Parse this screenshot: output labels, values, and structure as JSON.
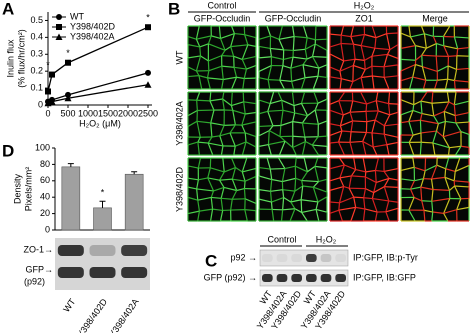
{
  "chart_data": [
    {
      "type": "line",
      "x": [
        0,
        100,
        500,
        2500
      ],
      "xlim": [
        0,
        2600
      ],
      "xticks": [
        0,
        500,
        1000,
        1500,
        2000,
        2500
      ],
      "ylim": [
        0,
        0.55
      ],
      "yticks": [
        0,
        0.1,
        0.2,
        0.3,
        0.4,
        0.5
      ],
      "xlabel": "H₂O₂ (μM)",
      "ylabel": [
        "Inulin flux",
        "(% flux/hr/cm²)"
      ],
      "legend": "upper left",
      "series": [
        {
          "name": "WT",
          "color": "#000000",
          "marker": "circle",
          "values": [
            0.02,
            0.03,
            0.06,
            0.19
          ]
        },
        {
          "name": "Y398/402D",
          "color": "#000000",
          "marker": "square",
          "values": [
            0.08,
            0.18,
            0.25,
            0.46
          ]
        },
        {
          "name": "Y398/402A",
          "color": "#000000",
          "marker": "triangle",
          "values": [
            0.01,
            0.02,
            0.04,
            0.12
          ]
        }
      ],
      "annotations": [
        "*",
        "*",
        "*"
      ]
    },
    {
      "type": "bar",
      "categories": [
        "WT",
        "Y398/402D",
        "Y398/402A"
      ],
      "values": [
        77,
        27,
        68
      ],
      "errors": [
        4,
        8,
        3
      ],
      "color": "#a0a0a0",
      "ylim": [
        0,
        100
      ],
      "yticks": [
        0,
        20,
        40,
        60,
        80,
        100
      ],
      "ylabel": [
        "Density",
        "Pixels/mm²"
      ],
      "annotations": [
        "*"
      ]
    }
  ],
  "figure": {
    "panel_labels": [
      "A",
      "B",
      "C",
      "D"
    ],
    "microscopy": {
      "groups": [
        "Control",
        "H₂O₂"
      ],
      "columns": [
        "GFP-Occludin",
        "GFP-Occludin",
        "ZO1",
        "Merge"
      ],
      "rows": [
        "WT",
        "Y398/402A",
        "Y398/402D"
      ]
    },
    "blot_d": {
      "bands": [
        "ZO-1→",
        "GFP→",
        "(p92)"
      ]
    },
    "blot_c": {
      "groups": [
        "Control",
        "H₂O₂"
      ],
      "rows": [
        "p92 →",
        "GFP (p92) →"
      ],
      "probes": [
        "IP:GFP, IB:p-Tyr",
        "IP:GFP, IB:GFP"
      ],
      "lanes": [
        "WT",
        "Y398/402A",
        "Y398/402D",
        "WT",
        "Y398/402A",
        "Y398/402D"
      ]
    }
  }
}
